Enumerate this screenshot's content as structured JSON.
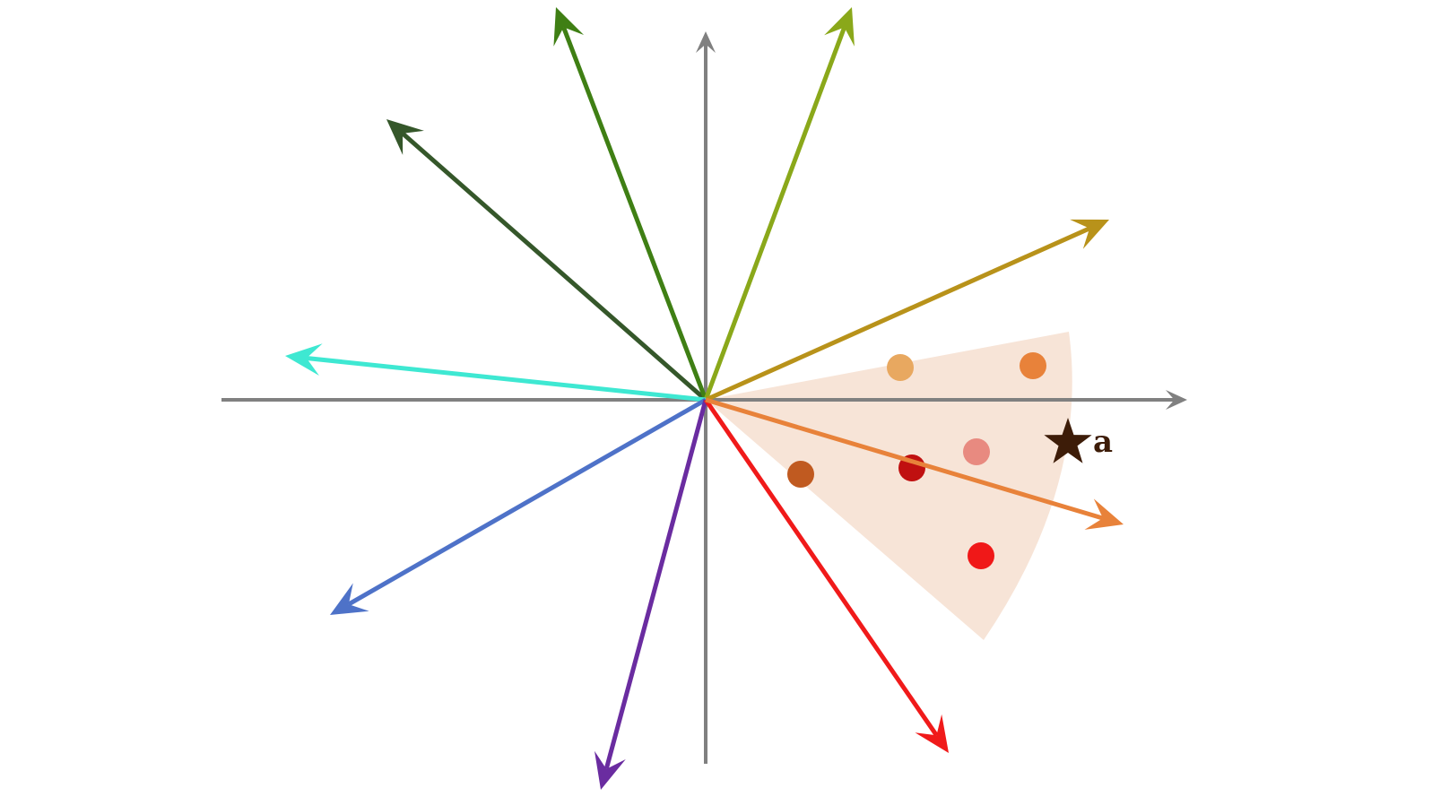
{
  "diagram": {
    "axis_color": "#808080",
    "sector_color": "#f7e4d7",
    "vectors": [
      {
        "name": "dark-green",
        "color": "#35572a"
      },
      {
        "name": "green",
        "color": "#3f7f14"
      },
      {
        "name": "olive",
        "color": "#8aa81a"
      },
      {
        "name": "gold",
        "color": "#b8921a"
      },
      {
        "name": "cyan",
        "color": "#3ee8d2"
      },
      {
        "name": "blue",
        "color": "#4e72c8"
      },
      {
        "name": "purple",
        "color": "#6a2ca0"
      },
      {
        "name": "red",
        "color": "#f01a1a"
      },
      {
        "name": "orange",
        "color": "#e8823a"
      }
    ],
    "points": [
      {
        "color": "#e8a860"
      },
      {
        "color": "#e8823a"
      },
      {
        "color": "#e88a80"
      },
      {
        "color": "#c01010"
      },
      {
        "color": "#c05a20"
      },
      {
        "color": "#f01818"
      }
    ],
    "star": {
      "color": "#3d1c08",
      "label": "a"
    }
  }
}
